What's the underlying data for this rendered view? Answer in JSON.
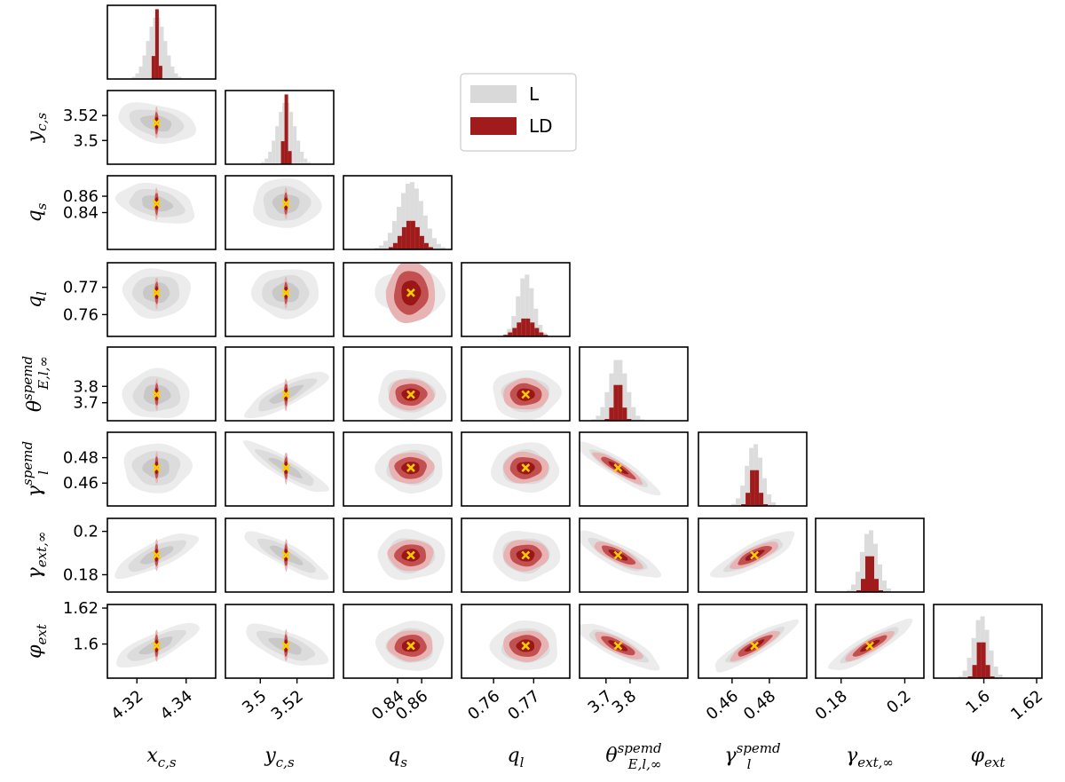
{
  "chart_data": {
    "type": "corner",
    "parameters": [
      {
        "key": "xcs",
        "label": "x_c,s",
        "base": "x",
        "sub": "c,s",
        "sup": "",
        "truth": 4.328,
        "range": [
          4.308,
          4.352
        ],
        "ticks": [
          "4.32",
          "4.34"
        ],
        "ticks_rotated": true
      },
      {
        "key": "ycs",
        "label": "y_c,s",
        "base": "y",
        "sub": "c,s",
        "sup": "",
        "truth": 3.514,
        "range": [
          3.481,
          3.54
        ],
        "ticks": [
          "3.5",
          "3.52"
        ],
        "ticks_rotated": true
      },
      {
        "key": "qs",
        "label": "q_s",
        "base": "q",
        "sub": "s",
        "sup": "",
        "truth": 0.851,
        "range": [
          0.795,
          0.885
        ],
        "ticks": [
          "0.84",
          "0.86"
        ],
        "ticks_rotated": true
      },
      {
        "key": "ql",
        "label": "q_l",
        "base": "q",
        "sub": "l",
        "sup": "",
        "truth": 0.768,
        "range": [
          0.752,
          0.779
        ],
        "ticks": [
          "0.76",
          "0.77"
        ],
        "ticks_rotated": true
      },
      {
        "key": "theta",
        "label": "θ_E,l,∞^spemd",
        "base": "θ",
        "sub": "E,l,∞",
        "sup": "spemd",
        "truth": 3.75,
        "range": [
          3.59,
          4.04
        ],
        "ticks": [
          "3.7",
          "3.8"
        ],
        "ticks_rotated": true
      },
      {
        "key": "gamma_l",
        "label": "γ_l^spemd",
        "base": "γ",
        "sub": "l",
        "sup": "spemd",
        "truth": 0.472,
        "range": [
          0.442,
          0.5
        ],
        "ticks": [
          "0.46",
          "0.48"
        ],
        "ticks_rotated": true
      },
      {
        "key": "gamma_ext",
        "label": "γ_ext,∞",
        "base": "γ",
        "sub": "ext,∞",
        "sup": "",
        "truth": 0.189,
        "range": [
          0.172,
          0.206
        ],
        "ticks": [
          "0.18",
          "0.2"
        ],
        "ticks_rotated": true
      },
      {
        "key": "phi_ext",
        "label": "φ_ext",
        "base": "φ",
        "sub": "ext",
        "sup": "",
        "truth": 1.599,
        "range": [
          1.581,
          1.622
        ],
        "ticks": [
          "1.6",
          "1.62"
        ],
        "ticks_rotated": true
      }
    ],
    "series": [
      {
        "name": "L",
        "color": "#d9d9d9"
      },
      {
        "name": "LD",
        "color": "#a01c1c"
      }
    ],
    "truth_marker_color": "#ffcc00",
    "legend_position": "top-center",
    "grid": false
  }
}
